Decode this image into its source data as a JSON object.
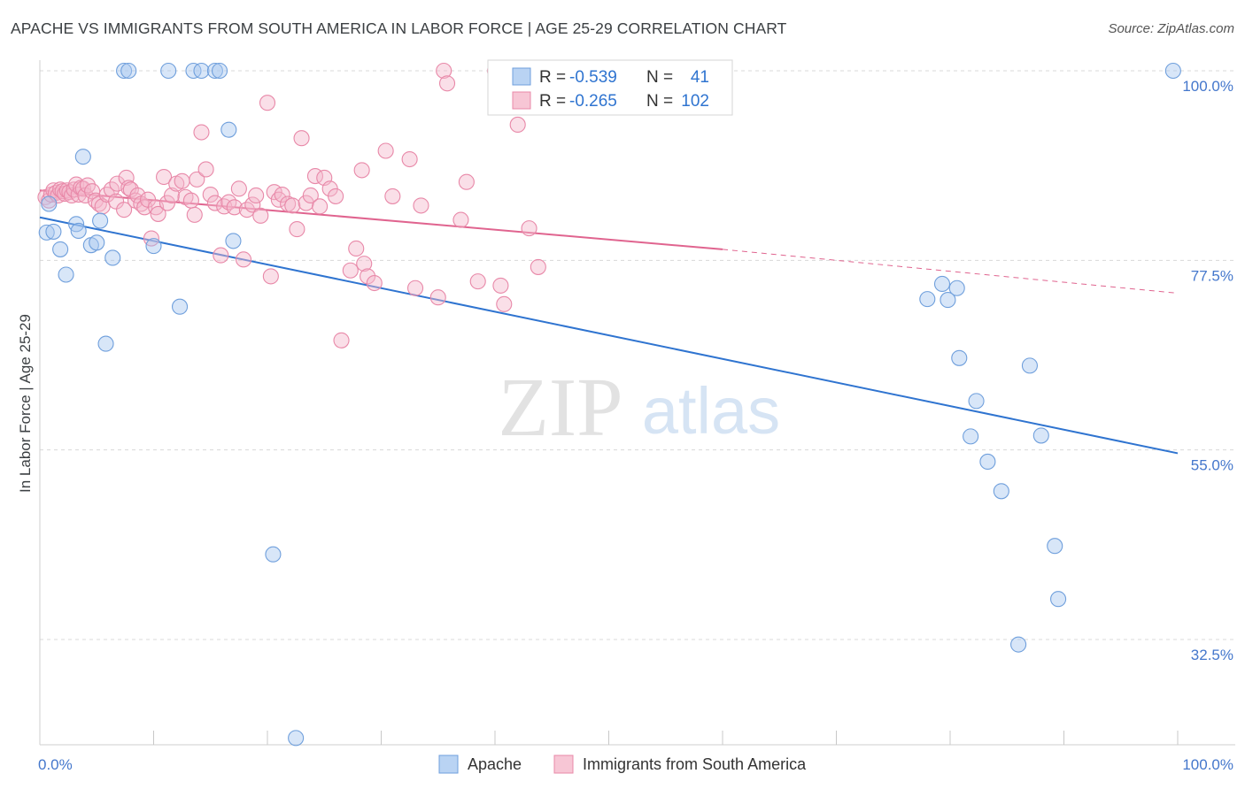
{
  "title": "APACHE VS IMMIGRANTS FROM SOUTH AMERICA IN LABOR FORCE | AGE 25-29 CORRELATION CHART",
  "source": "Source: ZipAtlas.com",
  "watermark": {
    "zip": "ZIP",
    "atlas": "atlas"
  },
  "colors": {
    "apache_fill": "#a9c8f0",
    "apache_stroke": "#6f9fdc",
    "apache_line": "#2f74d0",
    "sa_fill": "#f5b8cb",
    "sa_stroke": "#e888a8",
    "sa_line": "#e0648f",
    "tick_label": "#4477cc",
    "grid": "#d8d8d8"
  },
  "legend_top": {
    "rows": [
      {
        "r_label": "R =",
        "r_value": "-0.539",
        "n_label": "N =",
        "n_value": "41"
      },
      {
        "r_label": "R =",
        "r_value": "-0.265",
        "n_label": "N =",
        "n_value": "102"
      }
    ]
  },
  "chart_data": {
    "type": "scatter",
    "title": "APACHE VS IMMIGRANTS FROM SOUTH AMERICA IN LABOR FORCE | AGE 25-29 CORRELATION CHART",
    "xlabel": "",
    "ylabel": "In Labor Force | Age 25-29",
    "xlim": [
      0,
      100
    ],
    "ylim": [
      20,
      100
    ],
    "x_tick_labels": [
      "0.0%",
      "100.0%"
    ],
    "y_ticks": [
      100,
      77.5,
      55,
      32.5
    ],
    "y_tick_labels": [
      "100.0%",
      "77.5%",
      "55.0%",
      "32.5%"
    ],
    "grid": true,
    "legend_position": "bottom",
    "series": [
      {
        "name": "Apache",
        "r": -0.539,
        "n": 41,
        "trend": {
          "x": [
            0,
            100
          ],
          "y": [
            82.6,
            54.6
          ]
        },
        "points": [
          [
            0.8,
            84.2
          ],
          [
            0.6,
            80.8
          ],
          [
            1.2,
            80.9
          ],
          [
            1.8,
            78.8
          ],
          [
            2.3,
            75.8
          ],
          [
            3.2,
            81.8
          ],
          [
            3.4,
            81.0
          ],
          [
            3.8,
            89.8
          ],
          [
            4.5,
            79.3
          ],
          [
            5.0,
            79.6
          ],
          [
            5.3,
            82.2
          ],
          [
            5.8,
            67.6
          ],
          [
            6.4,
            77.8
          ],
          [
            7.4,
            100
          ],
          [
            7.8,
            100
          ],
          [
            10.0,
            79.2
          ],
          [
            11.3,
            100
          ],
          [
            12.3,
            72.0
          ],
          [
            13.5,
            100
          ],
          [
            14.2,
            100
          ],
          [
            15.4,
            100
          ],
          [
            15.8,
            100
          ],
          [
            16.6,
            93.0
          ],
          [
            17.0,
            79.8
          ],
          [
            20.5,
            42.6
          ],
          [
            22.5,
            20.8
          ],
          [
            78.0,
            72.9
          ],
          [
            79.3,
            74.7
          ],
          [
            79.8,
            72.8
          ],
          [
            80.6,
            74.2
          ],
          [
            80.8,
            65.9
          ],
          [
            81.8,
            56.6
          ],
          [
            82.3,
            60.8
          ],
          [
            83.3,
            53.6
          ],
          [
            84.5,
            50.1
          ],
          [
            86.0,
            31.9
          ],
          [
            87.0,
            65.0
          ],
          [
            88.0,
            56.7
          ],
          [
            89.2,
            43.6
          ],
          [
            89.5,
            37.3
          ],
          [
            99.6,
            100
          ]
        ]
      },
      {
        "name": "Immigrants from South America",
        "r": -0.265,
        "n": 102,
        "trend": {
          "x": [
            0,
            60
          ],
          "y": [
            85.8,
            78.8
          ]
        },
        "trend_dashed": {
          "x": [
            60,
            100
          ],
          "y": [
            78.8,
            73.6
          ]
        },
        "points": [
          [
            0.5,
            85.0
          ],
          [
            0.8,
            84.6
          ],
          [
            1.0,
            85.3
          ],
          [
            1.2,
            85.8
          ],
          [
            1.4,
            85.5
          ],
          [
            1.6,
            85.2
          ],
          [
            1.8,
            85.9
          ],
          [
            2.0,
            85.7
          ],
          [
            2.2,
            85.4
          ],
          [
            2.4,
            85.8
          ],
          [
            2.6,
            85.6
          ],
          [
            2.8,
            85.2
          ],
          [
            3.0,
            85.9
          ],
          [
            3.2,
            86.5
          ],
          [
            3.4,
            85.3
          ],
          [
            3.6,
            86.1
          ],
          [
            3.8,
            86.0
          ],
          [
            4.0,
            85.2
          ],
          [
            4.2,
            86.4
          ],
          [
            4.6,
            85.7
          ],
          [
            4.9,
            84.6
          ],
          [
            5.2,
            84.2
          ],
          [
            5.5,
            83.9
          ],
          [
            5.9,
            85.3
          ],
          [
            6.3,
            85.9
          ],
          [
            6.7,
            84.5
          ],
          [
            6.8,
            86.6
          ],
          [
            7.4,
            83.5
          ],
          [
            7.6,
            87.3
          ],
          [
            7.8,
            86.1
          ],
          [
            8.0,
            85.9
          ],
          [
            8.4,
            84.6
          ],
          [
            8.6,
            85.2
          ],
          [
            8.9,
            84.2
          ],
          [
            9.2,
            83.8
          ],
          [
            9.5,
            84.7
          ],
          [
            9.8,
            80.1
          ],
          [
            10.2,
            83.8
          ],
          [
            10.4,
            83.0
          ],
          [
            10.9,
            87.4
          ],
          [
            11.2,
            84.3
          ],
          [
            11.6,
            85.2
          ],
          [
            12.0,
            86.6
          ],
          [
            12.5,
            86.9
          ],
          [
            12.8,
            85.0
          ],
          [
            13.3,
            84.6
          ],
          [
            13.6,
            82.9
          ],
          [
            13.8,
            87.1
          ],
          [
            14.2,
            92.7
          ],
          [
            14.6,
            88.3
          ],
          [
            15.0,
            85.3
          ],
          [
            15.4,
            84.3
          ],
          [
            15.9,
            78.1
          ],
          [
            16.2,
            83.9
          ],
          [
            16.6,
            84.4
          ],
          [
            17.1,
            83.8
          ],
          [
            17.5,
            86.0
          ],
          [
            17.9,
            77.6
          ],
          [
            18.2,
            83.5
          ],
          [
            18.7,
            84.1
          ],
          [
            19.0,
            85.2
          ],
          [
            19.4,
            82.8
          ],
          [
            20.0,
            96.2
          ],
          [
            20.3,
            75.6
          ],
          [
            20.6,
            85.6
          ],
          [
            21.0,
            84.7
          ],
          [
            21.3,
            85.3
          ],
          [
            21.8,
            84.2
          ],
          [
            22.2,
            84.0
          ],
          [
            22.6,
            81.2
          ],
          [
            23.0,
            92.0
          ],
          [
            23.4,
            84.3
          ],
          [
            23.8,
            85.2
          ],
          [
            24.2,
            87.5
          ],
          [
            24.6,
            83.9
          ],
          [
            25.0,
            87.3
          ],
          [
            25.5,
            86.0
          ],
          [
            26.0,
            85.1
          ],
          [
            26.5,
            68.0
          ],
          [
            27.3,
            76.3
          ],
          [
            27.8,
            78.9
          ],
          [
            28.3,
            88.2
          ],
          [
            28.5,
            77.1
          ],
          [
            28.8,
            75.6
          ],
          [
            29.4,
            74.8
          ],
          [
            30.4,
            90.5
          ],
          [
            31.0,
            85.1
          ],
          [
            32.5,
            89.5
          ],
          [
            33.5,
            84.0
          ],
          [
            33.0,
            74.2
          ],
          [
            35.0,
            73.1
          ],
          [
            35.5,
            100
          ],
          [
            35.8,
            98.5
          ],
          [
            37.0,
            82.3
          ],
          [
            37.5,
            86.8
          ],
          [
            38.5,
            75.0
          ],
          [
            40.0,
            100
          ],
          [
            40.5,
            74.5
          ],
          [
            40.8,
            72.3
          ],
          [
            42.0,
            93.6
          ],
          [
            43.0,
            81.3
          ],
          [
            43.8,
            76.7
          ]
        ]
      }
    ]
  },
  "legend_bottom": {
    "items": [
      "Apache",
      "Immigrants from South America"
    ]
  }
}
